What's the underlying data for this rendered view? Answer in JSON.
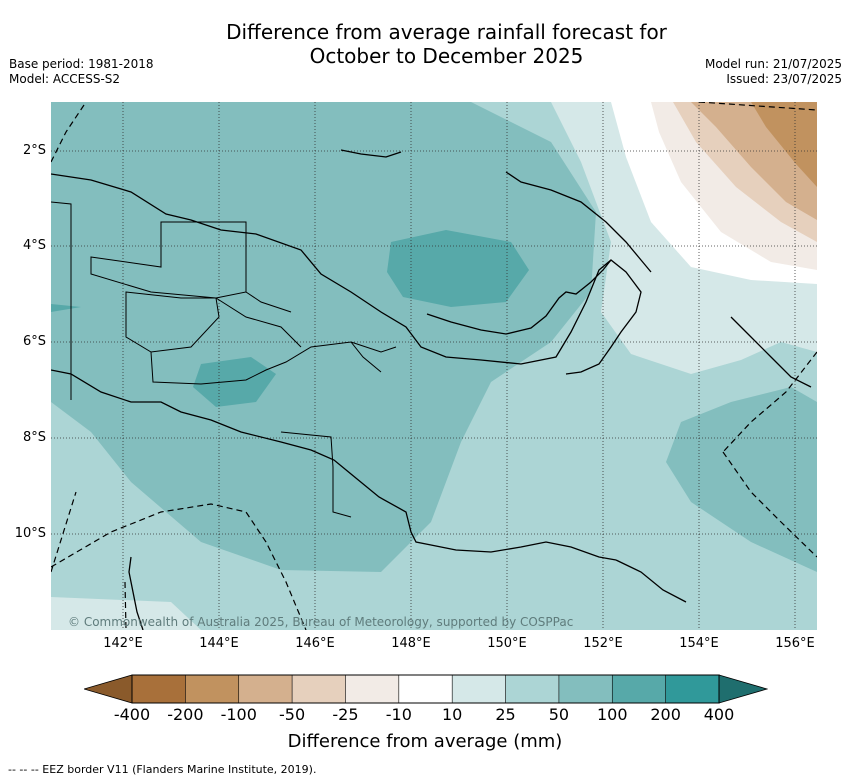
{
  "title": {
    "line1": "Difference from average rainfall forecast for",
    "line2": "October to December 2025"
  },
  "meta": {
    "base_period": "Base period: 1981-2018",
    "model": "Model: ACCESS-S2",
    "model_run": "Model run: 21/07/2025",
    "issued": "Issued: 23/07/2025"
  },
  "map": {
    "copyright": "© Commonwealth of Australia 2025, Bureau of Meteorology, supported by COSPPac",
    "lon_ticks": [
      "142°E",
      "144°E",
      "146°E",
      "148°E",
      "150°E",
      "152°E",
      "154°E",
      "156°E"
    ],
    "lat_ticks": [
      "2°S",
      "4°S",
      "6°S",
      "8°S",
      "10°S"
    ]
  },
  "colorbar": {
    "labels": [
      "-400",
      "-200",
      "-100",
      "-50",
      "-25",
      "-10",
      "10",
      "25",
      "50",
      "100",
      "200",
      "400"
    ],
    "colors": [
      "#a8703a",
      "#c1925f",
      "#d4b08e",
      "#e6d0bd",
      "#f2ebe6",
      "#ffffff",
      "#d5e8e8",
      "#acd5d5",
      "#83bebe",
      "#57a9a9",
      "#30999a",
      "#1f6e6e"
    ],
    "title": "Difference from average (mm)"
  },
  "footnote": "--  --  -- EEZ border V11 (Flanders Marine Institute, 2019)."
}
